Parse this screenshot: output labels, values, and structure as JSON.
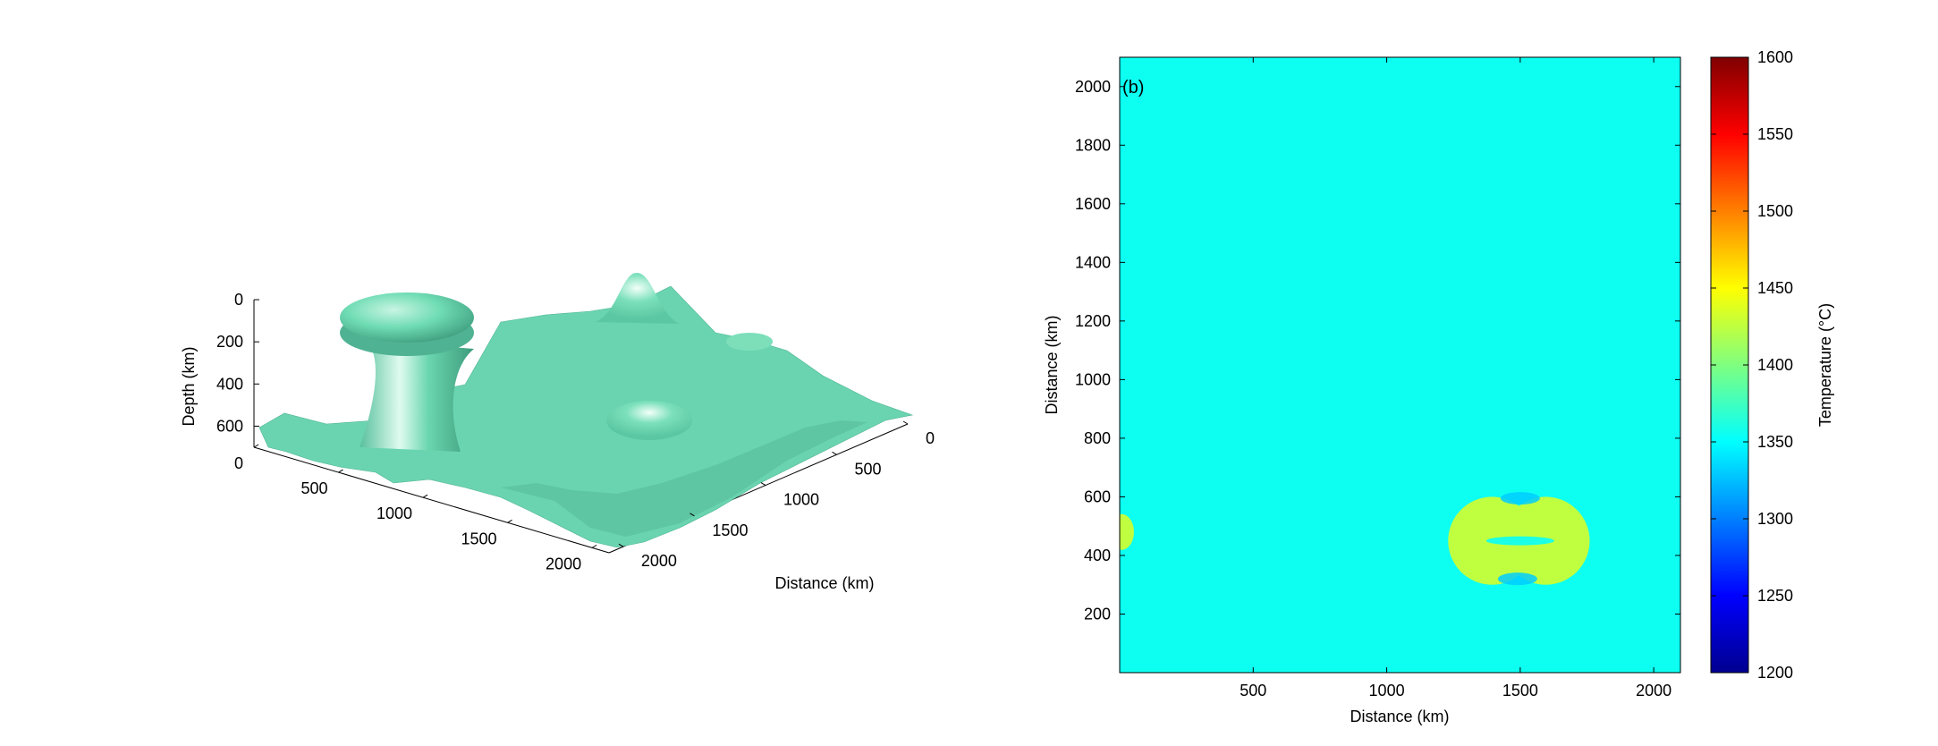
{
  "chart_data": [
    {
      "type": "surface3d",
      "title": "",
      "xlabel": "Distance (km)",
      "ylabel": "",
      "zlabel": "Depth (km)",
      "x_ticks": [
        "0",
        "500",
        "1000",
        "1500",
        "2000"
      ],
      "y_ticks": [
        "0",
        "500",
        "1000",
        "1500",
        "2000"
      ],
      "z_ticks": [
        "0",
        "200",
        "400",
        "600"
      ],
      "xlim": [
        0,
        2100
      ],
      "ylim": [
        0,
        2100
      ],
      "zlim": [
        0,
        700
      ],
      "surface_color": "#66d9b0",
      "features": [
        {
          "kind": "plume-head",
          "x": 300,
          "y": 150,
          "depth_top": 80,
          "depth_base": 660
        },
        {
          "kind": "bump",
          "x": 1050,
          "y": 600,
          "depth_top": 180
        },
        {
          "kind": "bump",
          "x": 600,
          "y": 1150,
          "depth_top": 330
        },
        {
          "kind": "ridge",
          "x": 1250,
          "y": 950,
          "depth_top": 440
        }
      ]
    },
    {
      "type": "heatmap",
      "annotation": "(b)",
      "xlabel": "Distance (km)",
      "ylabel": "Distance (km)",
      "xlim": [
        0,
        2100
      ],
      "ylim": [
        0,
        2100
      ],
      "x_ticks": [
        500,
        1000,
        1500,
        2000
      ],
      "y_ticks": [
        200,
        400,
        600,
        800,
        1000,
        1200,
        1400,
        1600,
        1800,
        2000
      ],
      "background_temperature": 1355,
      "anomalies": [
        {
          "shape": "dumbbell",
          "x_center": 1500,
          "y_center": 450,
          "x_range": [
            1230,
            1760
          ],
          "y_range": [
            300,
            600
          ],
          "temperature": 1425
        },
        {
          "shape": "dumbbell-core",
          "x_center": 1500,
          "y_center": 450,
          "temperature": 1360
        },
        {
          "shape": "edge-lobe",
          "x_center": 0,
          "y_center": 480,
          "temperature": 1425
        },
        {
          "shape": "cold-spot",
          "x_center": 1500,
          "y_center": 595,
          "temperature": 1330
        },
        {
          "shape": "cold-spot",
          "x_center": 1490,
          "y_center": 320,
          "temperature": 1330
        }
      ],
      "colorbar": {
        "label": "Temperature (°C)",
        "min": 1200,
        "max": 1600,
        "ticks": [
          1200,
          1250,
          1300,
          1350,
          1400,
          1450,
          1500,
          1550,
          1600
        ],
        "colormap": "jet"
      }
    }
  ]
}
